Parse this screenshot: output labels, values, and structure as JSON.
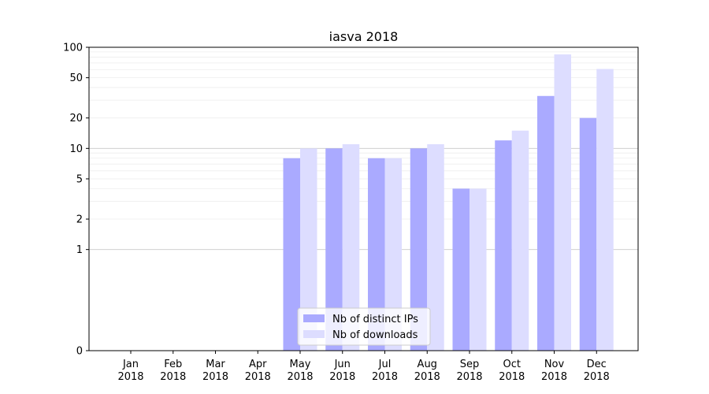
{
  "chart_data": {
    "type": "bar",
    "title": "iasva 2018",
    "xlabel": "",
    "ylabel": "",
    "yscale": "symlog",
    "ylim": [
      0,
      100
    ],
    "yticks": [
      0,
      1,
      2,
      5,
      10,
      20,
      50,
      100
    ],
    "categories": [
      [
        "Jan",
        "2018"
      ],
      [
        "Feb",
        "2018"
      ],
      [
        "Mar",
        "2018"
      ],
      [
        "Apr",
        "2018"
      ],
      [
        "May",
        "2018"
      ],
      [
        "Jun",
        "2018"
      ],
      [
        "Jul",
        "2018"
      ],
      [
        "Aug",
        "2018"
      ],
      [
        "Sep",
        "2018"
      ],
      [
        "Oct",
        "2018"
      ],
      [
        "Nov",
        "2018"
      ],
      [
        "Dec",
        "2018"
      ]
    ],
    "series": [
      {
        "name": "Nb of distinct IPs",
        "color": "#aaaaff",
        "values": [
          0,
          0,
          0,
          0,
          8,
          10,
          8,
          10,
          4,
          12,
          33,
          20
        ]
      },
      {
        "name": "Nb of downloads",
        "color": "#ddddff",
        "values": [
          0,
          0,
          0,
          0,
          10,
          11,
          8,
          11,
          4,
          15,
          85,
          61
        ]
      }
    ],
    "legend": {
      "position": "bottom-center"
    }
  }
}
